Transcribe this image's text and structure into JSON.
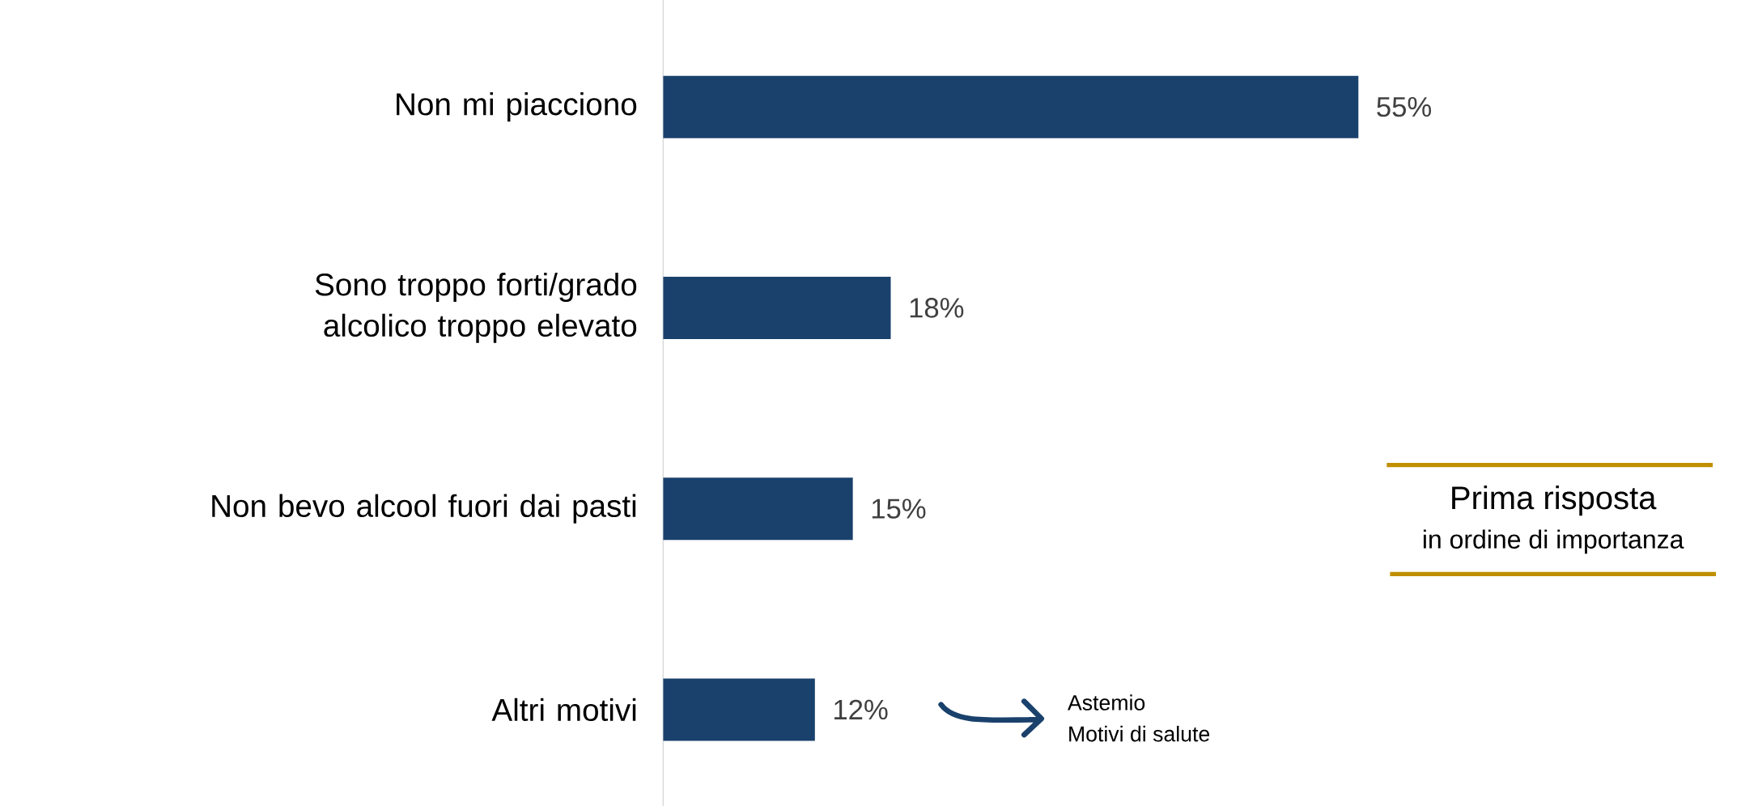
{
  "chart_data": {
    "type": "bar",
    "orientation": "horizontal",
    "categories": [
      "Non mi piacciono",
      "Sono troppo forti/grado alcolico troppo elevato",
      "Non bevo alcool fuori dai pasti",
      "Altri motivi"
    ],
    "values": [
      55,
      18,
      15,
      12
    ],
    "value_labels": [
      "55%",
      "18%",
      "15%",
      "12%"
    ],
    "color": "#1a416c",
    "annotations": [
      "Prima risposta",
      "in ordine di importanza",
      "Astemio",
      "Motivi di salute"
    ]
  }
}
